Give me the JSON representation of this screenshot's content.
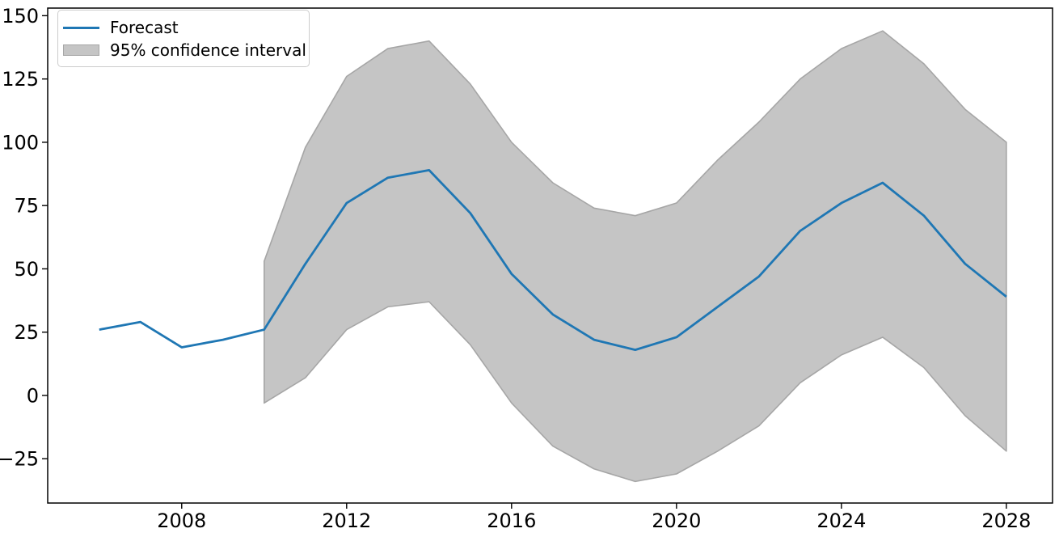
{
  "chart_data": {
    "type": "line",
    "title": "",
    "xlabel": "",
    "ylabel": "",
    "grid": false,
    "xlim": [
      2004.75,
      2029.12
    ],
    "ylim": [
      -42.5,
      153.0
    ],
    "x_ticks": [
      2008,
      2012,
      2016,
      2020,
      2024,
      2028
    ],
    "x_tick_labels": [
      "2008",
      "2012",
      "2016",
      "2020",
      "2024",
      "2028"
    ],
    "y_ticks": [
      -25,
      0,
      25,
      50,
      75,
      100,
      125,
      150
    ],
    "y_tick_labels": [
      "−25",
      "0",
      "25",
      "50",
      "75",
      "100",
      "125",
      "150"
    ],
    "series": [
      {
        "name": "Forecast",
        "color": "#1f77b4",
        "x": [
          2006,
          2007,
          2008,
          2009,
          2010,
          2011,
          2012,
          2013,
          2014,
          2015,
          2016,
          2017,
          2018,
          2019,
          2020,
          2021,
          2022,
          2023,
          2024,
          2025,
          2026,
          2027,
          2028
        ],
        "values": [
          26,
          29,
          19,
          22,
          26,
          52,
          76,
          86,
          89,
          72,
          48,
          32,
          22,
          18,
          23,
          35,
          47,
          65,
          76,
          84,
          71,
          52,
          39
        ]
      }
    ],
    "confidence_band": {
      "name": "95% confidence interval",
      "fill_color": "#c5c5c5",
      "edge_color": "#a6a6a6",
      "x": [
        2010,
        2011,
        2012,
        2013,
        2014,
        2015,
        2016,
        2017,
        2018,
        2019,
        2020,
        2021,
        2022,
        2023,
        2024,
        2025,
        2026,
        2027,
        2028
      ],
      "upper": [
        53,
        98,
        126,
        137,
        140,
        123,
        100,
        84,
        74,
        71,
        76,
        93,
        108,
        125,
        137,
        144,
        131,
        113,
        100
      ],
      "lower": [
        -3,
        7,
        26,
        35,
        37,
        20,
        -3,
        -20,
        -29,
        -34,
        -31,
        -22,
        -12,
        5,
        16,
        23,
        11,
        -8,
        -22
      ]
    },
    "legend": {
      "position": "upper-left",
      "items": [
        {
          "label": "Forecast",
          "swatch": "line"
        },
        {
          "label": "95% confidence interval",
          "swatch": "patch"
        }
      ]
    }
  }
}
